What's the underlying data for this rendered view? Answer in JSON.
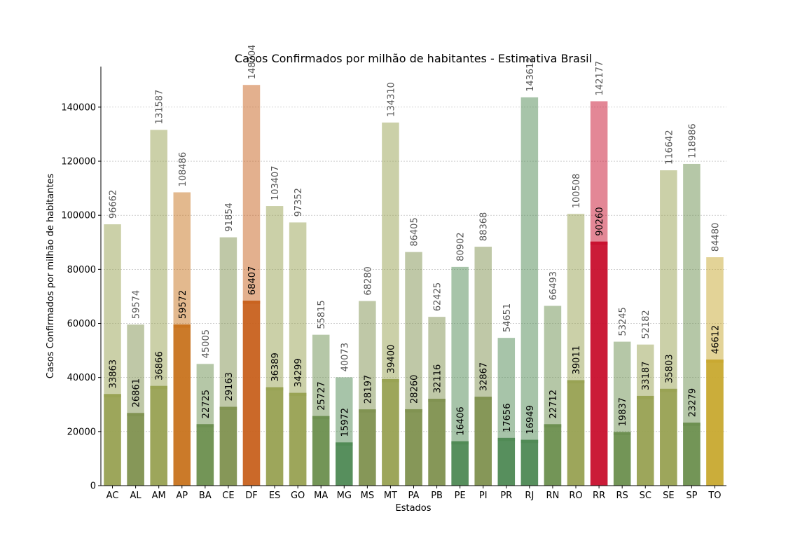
{
  "chart_data": {
    "type": "bar",
    "title": "Casos Confirmados por milhão de habitantes - Estimativa Brasil",
    "xlabel": "Estados",
    "ylabel": "Casos Confirmados por milhão de habitantes",
    "ylim": [
      0,
      155000
    ],
    "yticks": [
      0,
      20000,
      40000,
      60000,
      80000,
      100000,
      120000,
      140000
    ],
    "grid": "horizontal",
    "categories": [
      "AC",
      "AL",
      "AM",
      "AP",
      "BA",
      "CE",
      "DF",
      "ES",
      "GO",
      "MA",
      "MG",
      "MS",
      "MT",
      "PA",
      "PB",
      "PE",
      "PI",
      "PR",
      "RJ",
      "RN",
      "RO",
      "RR",
      "RS",
      "SC",
      "SE",
      "SP",
      "TO"
    ],
    "series": [
      {
        "values": [
          96662,
          59574,
          131587,
          108486,
          45005,
          91854,
          148204,
          103407,
          97352,
          55815,
          40073,
          68280,
          134310,
          86405,
          62425,
          80902,
          88368,
          54651,
          143612,
          66493,
          100508,
          142177,
          53245,
          52182,
          116642,
          118986,
          84480
        ]
      },
      {
        "values": [
          33863,
          26861,
          36866,
          59572,
          22725,
          29163,
          68407,
          36389,
          34299,
          25727,
          15972,
          28197,
          39400,
          28260,
          32116,
          16406,
          32867,
          17656,
          16949,
          22712,
          39011,
          90260,
          19837,
          33187,
          35803,
          23279,
          46612
        ]
      }
    ],
    "colors": [
      "#98a152",
      "#7f9150",
      "#98a152",
      "#c8731e",
      "#6b8f4f",
      "#7f9150",
      "#c8621e",
      "#98a152",
      "#98a152",
      "#6b8f4f",
      "#4f8a54",
      "#7f9150",
      "#98a152",
      "#7f9150",
      "#7f9150",
      "#4f8a54",
      "#7f9150",
      "#4f8a54",
      "#4f8a54",
      "#6b8f4f",
      "#98a152",
      "#c8102e",
      "#6b8f4f",
      "#98a152",
      "#98a152",
      "#6b8f4f",
      "#c8a830"
    ]
  }
}
